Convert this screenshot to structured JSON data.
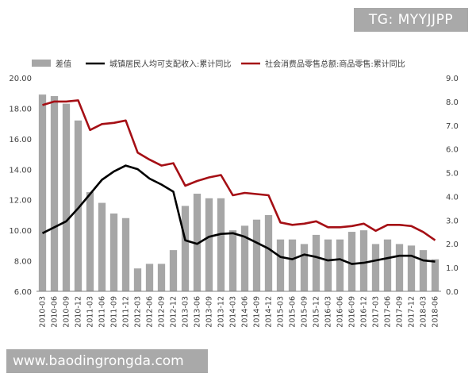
{
  "watermark_top": "TG: MYYJJPP",
  "watermark_bottom": "www.baodingrongda.com",
  "colors": {
    "bars": "#a6a6a6",
    "income_line": "#000000",
    "retail_line": "#a50f15",
    "axis": "#808080"
  },
  "chart_data": {
    "type": "bar",
    "legend_position": "top",
    "grid": false,
    "categories": [
      "2010-03",
      "2010-06",
      "2010-09",
      "2010-12",
      "2011-03",
      "2011-06",
      "2011-09",
      "2011-12",
      "2012-03",
      "2012-06",
      "2012-09",
      "2012-12",
      "2013-03",
      "2013-06",
      "2013-09",
      "2013-12",
      "2014-03",
      "2014-06",
      "2014-09",
      "2014-12",
      "2015-03",
      "2015-06",
      "2015-09",
      "2015-12",
      "2016-03",
      "2016-06",
      "2016-09",
      "2016-12",
      "2017-03",
      "2017-06",
      "2017-09",
      "2017-12",
      "2018-03",
      "2018-06"
    ],
    "left_axis": {
      "ylim": [
        6,
        20
      ],
      "ticks": [
        "6.00",
        "8.00",
        "10.00",
        "12.00",
        "14.00",
        "16.00",
        "18.00",
        "20.00"
      ]
    },
    "right_axis": {
      "ylim": [
        0,
        9
      ],
      "ticks": [
        "0.0",
        "1.0",
        "2.0",
        "3.0",
        "4.0",
        "5.0",
        "6.0",
        "7.0",
        "8.0",
        "9.0"
      ]
    },
    "series": [
      {
        "name": "差值",
        "type": "bar",
        "axis": "left",
        "values": [
          18.9,
          18.8,
          18.3,
          17.2,
          12.5,
          11.8,
          11.1,
          10.8,
          7.5,
          7.8,
          7.8,
          8.7,
          11.6,
          12.4,
          12.1,
          12.1,
          10.0,
          10.3,
          10.7,
          11.0,
          9.4,
          9.4,
          9.1,
          9.7,
          9.4,
          9.4,
          9.9,
          10.0,
          9.1,
          9.4,
          9.1,
          9.0,
          8.7,
          8.1
        ]
      },
      {
        "name": "城镇居民人均可支配收入:累计同比",
        "type": "line",
        "axis": "right",
        "values": [
          2.45,
          2.7,
          2.95,
          3.5,
          4.1,
          4.7,
          5.05,
          5.3,
          5.15,
          4.75,
          4.5,
          4.2,
          2.15,
          2.0,
          2.3,
          2.42,
          2.45,
          2.3,
          2.05,
          1.8,
          1.45,
          1.35,
          1.55,
          1.45,
          1.3,
          1.35,
          1.15,
          1.2,
          1.3,
          1.4,
          1.5,
          1.5,
          1.3,
          1.25
        ]
      },
      {
        "name": "社会消费品零售总额:商品零售:累计同比",
        "type": "line",
        "axis": "right",
        "values": [
          7.85,
          8.0,
          8.0,
          8.05,
          6.8,
          7.05,
          7.1,
          7.2,
          5.85,
          5.55,
          5.3,
          5.4,
          4.45,
          4.65,
          4.8,
          4.9,
          4.05,
          4.15,
          4.1,
          4.05,
          2.9,
          2.8,
          2.85,
          2.95,
          2.7,
          2.7,
          2.75,
          2.85,
          2.55,
          2.8,
          2.8,
          2.75,
          2.5,
          2.15
        ]
      }
    ]
  }
}
